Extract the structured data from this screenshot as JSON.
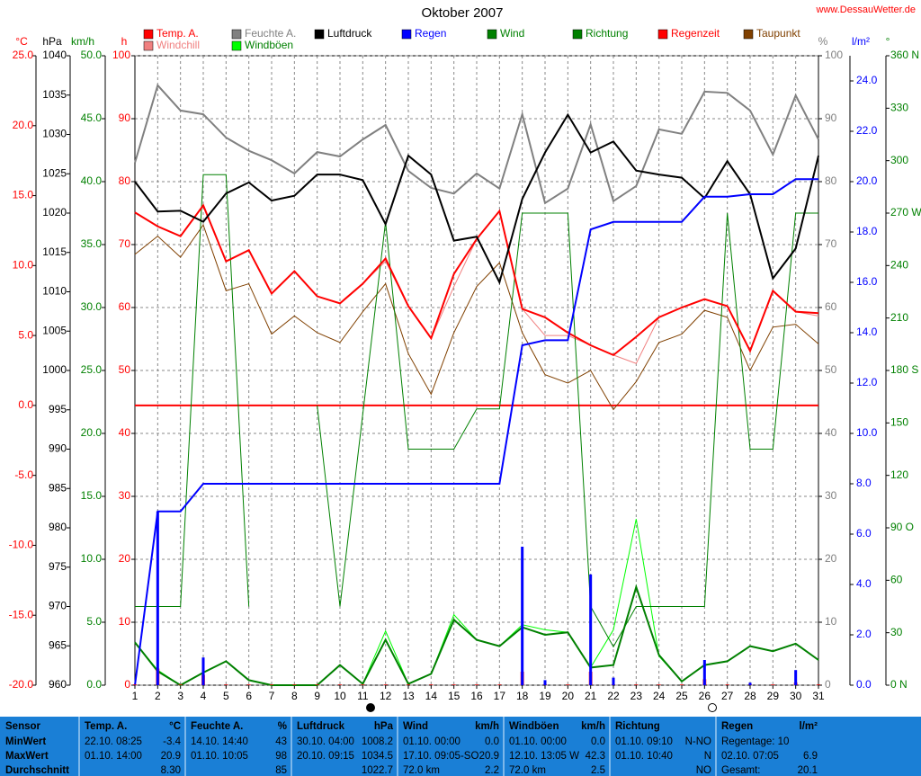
{
  "chart_data": {
    "type": "line",
    "title": "Oktober 2007",
    "source": "www.DessauWetter.de",
    "x": [
      1,
      2,
      3,
      4,
      5,
      6,
      7,
      8,
      9,
      10,
      11,
      12,
      13,
      14,
      15,
      16,
      17,
      18,
      19,
      20,
      21,
      22,
      23,
      24,
      25,
      26,
      27,
      28,
      29,
      30,
      31
    ],
    "xlim": [
      1,
      31
    ],
    "xticks": [
      1,
      2,
      3,
      4,
      5,
      6,
      7,
      8,
      9,
      10,
      11,
      12,
      13,
      14,
      15,
      16,
      17,
      18,
      19,
      20,
      21,
      22,
      23,
      24,
      25,
      26,
      27,
      28,
      29,
      30,
      31
    ],
    "grid": true,
    "axes": {
      "y": {
        "label": "°C",
        "color": "#ff0000",
        "lim": [
          -20,
          25
        ],
        "ticks": [
          {
            "value": 25,
            "label": "25.0"
          },
          {
            "value": 20,
            "label": "20.0"
          },
          {
            "value": 15,
            "label": "15.0"
          },
          {
            "value": 10,
            "label": "10.0"
          },
          {
            "value": 5,
            "label": "5.0"
          },
          {
            "value": 0,
            "label": "0.0"
          },
          {
            "value": -5,
            "label": "-5.0"
          },
          {
            "value": -10,
            "label": "-10.0"
          },
          {
            "value": -15,
            "label": "-15.0"
          },
          {
            "value": -20,
            "label": "-20.0"
          }
        ]
      },
      "y2": {
        "label": "hPa",
        "color": "#000000",
        "lim": [
          960,
          1040
        ],
        "ticks": [
          1040,
          1035,
          1030,
          1025,
          1020,
          1015,
          1010,
          1005,
          1000,
          995,
          990,
          985,
          980,
          975,
          970,
          965,
          960
        ]
      },
      "y3": {
        "label": "km/h",
        "color": "#008000",
        "lim": [
          0,
          50
        ],
        "ticks": [
          {
            "value": 50,
            "label": "50.0"
          },
          {
            "value": 45,
            "label": "45.0"
          },
          {
            "value": 40,
            "label": "40.0"
          },
          {
            "value": 35,
            "label": "35.0"
          },
          {
            "value": 30,
            "label": "30.0"
          },
          {
            "value": 25,
            "label": "25.0"
          },
          {
            "value": 20,
            "label": "20.0"
          },
          {
            "value": 15,
            "label": "15.0"
          },
          {
            "value": 10,
            "label": "10.0"
          },
          {
            "value": 5,
            "label": "5.0"
          },
          {
            "value": 0,
            "label": "0.0"
          }
        ]
      },
      "y4": {
        "label": "h",
        "color": "#ff0000",
        "lim": [
          0,
          100
        ],
        "ticks": [
          100,
          90,
          80,
          70,
          60,
          50,
          40,
          30,
          20,
          10,
          0
        ]
      },
      "y5": {
        "label": "%",
        "color": "#808080",
        "lim": [
          0,
          100
        ],
        "ticks": [
          100,
          90,
          80,
          70,
          60,
          50,
          40,
          30,
          20,
          10,
          0
        ]
      },
      "y6": {
        "label": "l/m²",
        "color": "#0000ff",
        "lim": [
          0,
          25
        ],
        "ticks": [
          {
            "value": 24,
            "label": "24.0"
          },
          {
            "value": 22,
            "label": "22.0"
          },
          {
            "value": 20,
            "label": "20.0"
          },
          {
            "value": 18,
            "label": "18.0"
          },
          {
            "value": 16,
            "label": "16.0"
          },
          {
            "value": 14,
            "label": "14.0"
          },
          {
            "value": 12,
            "label": "12.0"
          },
          {
            "value": 10,
            "label": "10.0"
          },
          {
            "value": 8,
            "label": "8.0"
          },
          {
            "value": 6,
            "label": "6.0"
          },
          {
            "value": 4,
            "label": "4.0"
          },
          {
            "value": 2,
            "label": "2.0"
          },
          {
            "value": 0,
            "label": "0.0"
          }
        ]
      },
      "y7": {
        "label": "°",
        "color": "#008000",
        "lim": [
          0,
          360
        ],
        "ticks": [
          {
            "value": 360,
            "label": "360 N"
          },
          330,
          300,
          {
            "value": 270,
            "label": "270 W"
          },
          240,
          210,
          {
            "value": 180,
            "label": "180 S"
          },
          150,
          120,
          {
            "value": 90,
            "label": "90 O"
          },
          60,
          30,
          {
            "value": 0,
            "label": "0 N"
          }
        ]
      }
    },
    "series": [
      {
        "name": "Temp. A.",
        "color": "#ff0000",
        "axis": "y",
        "width": 2,
        "values": [
          13.8,
          12.8,
          12.1,
          14.3,
          10.3,
          11.1,
          8.0,
          9.6,
          7.8,
          7.3,
          8.7,
          10.5,
          7.1,
          4.8,
          9.4,
          11.9,
          13.9,
          6.9,
          6.3,
          5.2,
          4.3,
          3.6,
          4.9,
          6.3,
          7.0,
          7.6,
          7.1,
          3.9,
          8.2,
          6.7,
          6.6
        ]
      },
      {
        "name": "Windchill",
        "color": "#f08080",
        "axis": "y",
        "width": 1,
        "values": [
          13.8,
          12.8,
          12.1,
          14.3,
          10.3,
          11.1,
          8.0,
          9.6,
          7.8,
          7.3,
          8.7,
          10.3,
          7.1,
          4.8,
          8.5,
          11.9,
          13.9,
          6.9,
          5.0,
          5.0,
          4.3,
          3.6,
          3.0,
          6.3,
          7.0,
          7.6,
          7.1,
          3.9,
          8.2,
          6.7,
          6.4
        ]
      },
      {
        "name": "Feuchte A.",
        "color": "#808080",
        "axis": "y5",
        "width": 2,
        "values": [
          83,
          95.3,
          91.3,
          90.7,
          87,
          84.9,
          83.4,
          81.3,
          84.7,
          84,
          86.7,
          89,
          81.7,
          79,
          78.1,
          81.3,
          78.9,
          90.7,
          76.6,
          78.9,
          89.1,
          76.9,
          79.3,
          88.3,
          87.6,
          94.3,
          94.1,
          91.3,
          84.3,
          93.7,
          86.7
        ]
      },
      {
        "name": "Windböen",
        "color": "#00ff00",
        "axis": "y3",
        "width": 1,
        "values": [
          3.4,
          1.2,
          0,
          1.0,
          1.9,
          0.4,
          0,
          0,
          0,
          1.6,
          0.1,
          4.3,
          0.1,
          0.9,
          5.6,
          3.6,
          3.1,
          4.8,
          4.4,
          4.2,
          1.4,
          4.4,
          13.2,
          2.3,
          0.3,
          1.6,
          1.9,
          3.1,
          2.7,
          3.3,
          2.0
        ]
      },
      {
        "name": "Luftdruck",
        "color": "#000000",
        "axis": "y2",
        "width": 2,
        "values": [
          1024.0,
          1020.2,
          1020.3,
          1018.9,
          1022.5,
          1023.9,
          1021.6,
          1022.2,
          1024.9,
          1024.9,
          1024.2,
          1018.6,
          1027.3,
          1024.9,
          1016.5,
          1017.0,
          1011.2,
          1021.8,
          1027.7,
          1032.5,
          1027.7,
          1029.1,
          1025.4,
          1024.9,
          1024.5,
          1021.9,
          1026.6,
          1022.4,
          1011.7,
          1015.5,
          1027.3
        ]
      },
      {
        "name": "Regen",
        "color": "#0000ff",
        "axis": "y6",
        "width": 2,
        "values": [
          0,
          6.9,
          6.9,
          8.0,
          8.0,
          8.0,
          8.0,
          8.0,
          8.0,
          8.0,
          8.0,
          8.0,
          8.0,
          8.0,
          8.0,
          8.0,
          8.0,
          13.5,
          13.7,
          13.7,
          18.1,
          18.4,
          18.4,
          18.4,
          18.4,
          19.4,
          19.4,
          19.5,
          19.5,
          20.1,
          20.1
        ]
      },
      {
        "name": "Wind",
        "color": "#008000",
        "axis": "y3",
        "width": 2,
        "values": [
          3.4,
          1.1,
          0,
          1.0,
          1.9,
          0.4,
          0,
          0,
          0,
          1.6,
          0.1,
          3.6,
          0.1,
          0.9,
          5.2,
          3.6,
          3.1,
          4.6,
          4.0,
          4.2,
          1.4,
          1.6,
          7.8,
          2.4,
          0.3,
          1.6,
          1.9,
          3.1,
          2.7,
          3.3,
          2.0
        ]
      },
      {
        "name": "Richtung",
        "color": "#008000",
        "axis": "y7",
        "width": 1,
        "values": [
          45,
          45,
          45,
          292,
          292,
          45,
          null,
          null,
          160,
          45,
          155,
          265,
          135,
          135,
          135,
          158,
          158,
          270,
          270,
          270,
          45,
          22,
          45,
          45,
          45,
          45,
          270,
          135,
          135,
          270,
          270
        ]
      },
      {
        "name": "Regenzeit",
        "color": "#ff0000",
        "axis": "y4",
        "type": "bar",
        "values": [
          0,
          2.5,
          0,
          1.5,
          0,
          0,
          0,
          0,
          0,
          0,
          0,
          0,
          0,
          0,
          0,
          0,
          0,
          2.0,
          0,
          0,
          2.0,
          0,
          0,
          0,
          0,
          0.8,
          0,
          0,
          0,
          0.3,
          0
        ]
      },
      {
        "name": "Taupunkt",
        "color": "#804000",
        "axis": "y",
        "width": 1,
        "values": [
          10.8,
          12.1,
          10.6,
          12.9,
          8.2,
          8.7,
          5.1,
          6.4,
          5.2,
          4.5,
          6.7,
          8.7,
          3.7,
          0.8,
          5.2,
          8.5,
          10.2,
          5.2,
          2.2,
          1.6,
          2.5,
          -0.3,
          1.7,
          4.5,
          5.1,
          6.8,
          6.3,
          2.5,
          5.6,
          5.8,
          4.4
        ]
      }
    ],
    "rain_daily": {
      "color": "#0000ff",
      "axis": "y6",
      "values": [
        0,
        6.9,
        0,
        1.1,
        0,
        0,
        0,
        0,
        0,
        0,
        0,
        0,
        0,
        0,
        0,
        0,
        0,
        5.5,
        0.2,
        0,
        4.4,
        0.3,
        0,
        0,
        0,
        1.0,
        0,
        0.1,
        0,
        0.6,
        0
      ]
    }
  },
  "table": {
    "sensor_label": "Sensor",
    "row_labels": [
      "MinWert",
      "MaxWert",
      "Durchschnitt"
    ],
    "columns": [
      {
        "name": "Temp. A.",
        "unit": "°C",
        "rows": [
          [
            "22.10. 08:25",
            "-3.4"
          ],
          [
            "01.10. 14:00",
            "20.9"
          ],
          [
            null,
            "8.30"
          ]
        ]
      },
      {
        "name": "Feuchte A.",
        "unit": "%",
        "rows": [
          [
            "14.10. 14:40",
            "43"
          ],
          [
            "01.10. 10:05",
            "98"
          ],
          [
            null,
            "85"
          ]
        ]
      },
      {
        "name": "Luftdruck",
        "unit": "hPa",
        "rows": [
          [
            "30.10. 04:00",
            "1008.2"
          ],
          [
            "20.10. 09:15",
            "1034.5"
          ],
          [
            null,
            "1022.7"
          ]
        ]
      },
      {
        "name": "Wind",
        "unit": "km/h",
        "rows": [
          [
            "01.10. 00:00",
            "0.0"
          ],
          [
            "17.10. 09:05-SO",
            "20.9"
          ],
          [
            "72.0 km",
            "2.2"
          ]
        ]
      },
      {
        "name": "Windböen",
        "unit": "km/h",
        "rows": [
          [
            "01.10. 00:00",
            "0.0"
          ],
          [
            "12.10. 13:05 W",
            "42.3"
          ],
          [
            "72.0 km",
            "2.5"
          ]
        ]
      },
      {
        "name": "Richtung",
        "unit": null,
        "rows": [
          [
            "01.10. 09:10",
            "N-NO"
          ],
          [
            "01.10. 10:40",
            "N"
          ],
          [
            null,
            "NO"
          ]
        ]
      },
      {
        "name": "Regen",
        "unit": "l/m²",
        "rows": [
          [
            "Regentage: 10",
            null
          ],
          [
            "02.10. 07:05",
            "6.9"
          ],
          [
            "Gesamt:",
            "20.1"
          ]
        ]
      }
    ]
  }
}
